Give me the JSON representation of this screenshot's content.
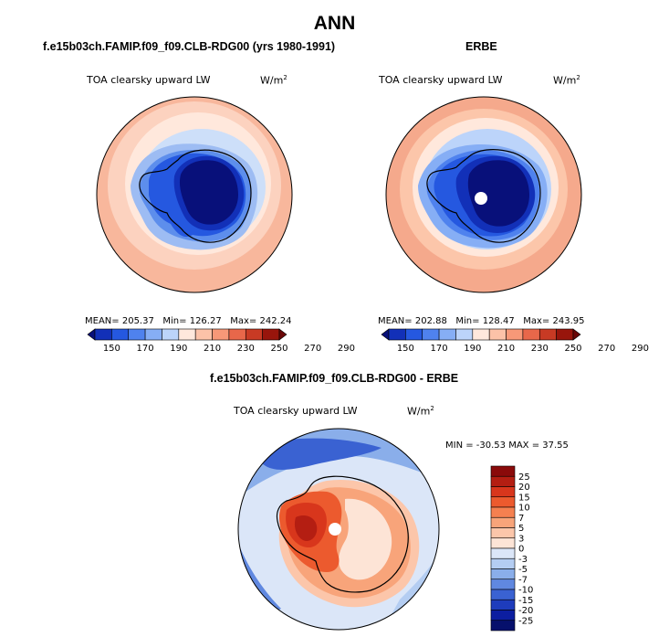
{
  "figure": {
    "title": "ANN"
  },
  "panels": [
    {
      "title": "f.e15b03ch.FAMIP.f09_f09.CLB-RDG00 (yrs 1980-1991)",
      "variable": "TOA clearsky upward LW",
      "units": "W/m",
      "units_sup": "2",
      "stats": {
        "mean_label": "MEAN=",
        "mean": "205.37",
        "min_label": "Min=",
        "min": "126.27",
        "max_label": "Max=",
        "max": "242.24"
      },
      "colorbar": {
        "levels": [
          "150",
          "170",
          "190",
          "210",
          "230",
          "250",
          "270",
          "290"
        ],
        "colors": [
          "#08107a",
          "#1230b8",
          "#2558e0",
          "#4f82ee",
          "#86aef5",
          "#bcd4fa",
          "#ffe8dc",
          "#fcc2a8",
          "#f79878",
          "#e8674a",
          "#c83a24",
          "#98150c",
          "#6a0606"
        ]
      }
    },
    {
      "title": "ERBE",
      "variable": "TOA clearsky upward LW",
      "units": "W/m",
      "units_sup": "2",
      "stats": {
        "mean_label": "MEAN=",
        "mean": "202.88",
        "min_label": "Min=",
        "min": "128.47",
        "max_label": "Max=",
        "max": "243.95"
      },
      "colorbar": {
        "levels": [
          "150",
          "170",
          "190",
          "210",
          "230",
          "250",
          "270",
          "290"
        ],
        "colors": [
          "#08107a",
          "#1230b8",
          "#2558e0",
          "#4f82ee",
          "#86aef5",
          "#bcd4fa",
          "#ffe8dc",
          "#fcc2a8",
          "#f79878",
          "#e8674a",
          "#c83a24",
          "#98150c",
          "#6a0606"
        ]
      }
    },
    {
      "title": "f.e15b03ch.FAMIP.f09_f09.CLB-RDG00 - ERBE",
      "variable": "TOA clearsky upward LW",
      "units": "W/m",
      "units_sup": "2",
      "stats": {
        "text": "MIN = -30.53 MAX = 37.55"
      },
      "colorbar": {
        "levels": [
          "25",
          "20",
          "15",
          "10",
          "7",
          "5",
          "3",
          "0",
          "-3",
          "-5",
          "-7",
          "-10",
          "-15",
          "-20",
          "-25"
        ],
        "colors": [
          "#8a0a0a",
          "#b41e12",
          "#d8361c",
          "#ec5a2e",
          "#f58050",
          "#f8a47a",
          "#fcc6aa",
          "#fde4d6",
          "#dbe6f8",
          "#b4cdf2",
          "#8aaeea",
          "#6088e0",
          "#3a62d2",
          "#1e3cbc",
          "#0c1ea0",
          "#06106c"
        ]
      }
    }
  ]
}
